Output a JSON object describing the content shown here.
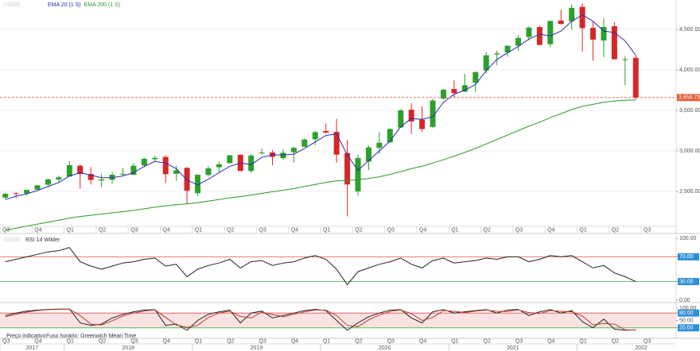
{
  "chart_data": [
    {
      "type": "candlestick",
      "watermark": "US500",
      "candles": {
        "open": [
          2423,
          2477,
          2474,
          2521,
          2583,
          2645,
          2683,
          2816,
          2715,
          2634,
          2643,
          2718,
          2705,
          2821,
          2897,
          2926,
          2717,
          2790,
          2477,
          2702,
          2798,
          2848,
          2952,
          2751,
          2971,
          2980,
          2910,
          2984,
          3051,
          3144,
          3245,
          3235,
          2974,
          2499,
          2869,
          3038,
          3105,
          3289,
          3508,
          3385,
          3296,
          3645,
          3764,
          3731,
          3842,
          3992,
          4191,
          4216,
          4300,
          4406,
          4529,
          4317,
          4610,
          4602,
          4778,
          4519,
          4363,
          4540,
          4130,
          4150
        ],
        "high": [
          2484,
          2490,
          2519,
          2582,
          2657,
          2695,
          2873,
          2835,
          2801,
          2718,
          2742,
          2791,
          2848,
          2917,
          2941,
          2940,
          2815,
          2800,
          2708,
          2813,
          2861,
          2949,
          2954,
          2964,
          3027,
          3013,
          3022,
          3050,
          3154,
          3248,
          3337,
          3394,
          3136,
          2954,
          3068,
          3233,
          3280,
          3514,
          3588,
          3549,
          3646,
          3760,
          3870,
          3950,
          3983,
          4218,
          4238,
          4302,
          4429,
          4537,
          4546,
          4608,
          4743,
          4808,
          4819,
          4595,
          4637,
          4593,
          4169,
          4177
        ],
        "low": [
          2407,
          2417,
          2446,
          2520,
          2557,
          2605,
          2683,
          2533,
          2585,
          2553,
          2594,
          2698,
          2699,
          2796,
          2864,
          2603,
          2631,
          2346,
          2444,
          2681,
          2722,
          2848,
          2751,
          2729,
          2952,
          2822,
          2891,
          2855,
          3051,
          3070,
          3214,
          2855,
          2192,
          2447,
          2766,
          2966,
          3101,
          3284,
          3210,
          3234,
          3280,
          3634,
          3662,
          3725,
          3724,
          3955,
          4056,
          4164,
          4233,
          4367,
          4305,
          4279,
          4560,
          4495,
          4222,
          4115,
          4157,
          4124,
          3811,
          3636
        ],
        "close": [
          2470,
          2471,
          2519,
          2575,
          2648,
          2674,
          2824,
          2714,
          2641,
          2648,
          2705,
          2718,
          2816,
          2902,
          2914,
          2712,
          2760,
          2507,
          2704,
          2784,
          2834,
          2946,
          2752,
          2942,
          2980,
          2926,
          2977,
          3038,
          3141,
          3231,
          3226,
          2954,
          2585,
          2912,
          3044,
          3100,
          3271,
          3500,
          3363,
          3270,
          3622,
          3756,
          3714,
          3811,
          3973,
          4181,
          4204,
          4298,
          4395,
          4523,
          4308,
          4605,
          4567,
          4766,
          4516,
          4374,
          4530,
          4132,
          4132,
          3658.73
        ],
        "up_color": "#2ca02c",
        "down_color": "#d62728"
      },
      "series": [
        {
          "name": "EMA 20 (1 S)",
          "color": "#2b2bb0",
          "values": [
            2400,
            2440,
            2470,
            2510,
            2560,
            2610,
            2690,
            2730,
            2700,
            2670,
            2670,
            2690,
            2730,
            2810,
            2870,
            2850,
            2780,
            2640,
            2580,
            2650,
            2730,
            2810,
            2850,
            2830,
            2920,
            2950,
            2950,
            2960,
            3030,
            3110,
            3190,
            3210,
            2950,
            2760,
            2880,
            3000,
            3120,
            3300,
            3400,
            3390,
            3420,
            3600,
            3700,
            3750,
            3820,
            3990,
            4130,
            4210,
            4290,
            4380,
            4440,
            4420,
            4480,
            4600,
            4680,
            4600,
            4480,
            4460,
            4360,
            4180
          ]
        },
        {
          "name": "EMA 200 (1 S)",
          "color": "#2a9a2a",
          "values": [
            2020,
            2045,
            2070,
            2095,
            2120,
            2145,
            2170,
            2190,
            2205,
            2220,
            2235,
            2250,
            2265,
            2285,
            2305,
            2320,
            2335,
            2345,
            2360,
            2380,
            2400,
            2420,
            2435,
            2455,
            2475,
            2495,
            2515,
            2535,
            2560,
            2585,
            2610,
            2630,
            2635,
            2645,
            2660,
            2680,
            2710,
            2745,
            2780,
            2810,
            2850,
            2890,
            2935,
            2980,
            3030,
            3085,
            3140,
            3195,
            3250,
            3305,
            3355,
            3410,
            3460,
            3510,
            3550,
            3575,
            3600,
            3615,
            3625,
            3630
          ]
        }
      ],
      "last_price": {
        "value": 3658.73,
        "label": "3,658.73",
        "color": "#e0603a"
      },
      "ylim": [
        1990,
        4863
      ],
      "yticks": [
        {
          "value": 2500,
          "label": "2,500.00"
        },
        {
          "value": 3000,
          "label": "3,000.00"
        },
        {
          "value": 3500,
          "label": "3,500.00"
        },
        {
          "value": 4000,
          "label": "4,000.00"
        },
        {
          "value": 4500,
          "label": "4,500.00"
        }
      ],
      "grid": true,
      "quarters": [
        "Q3",
        "Q4",
        "Q1",
        "Q2",
        "Q3",
        "Q4",
        "Q1",
        "Q2",
        "Q3",
        "Q4",
        "Q1",
        "Q2",
        "Q3",
        "Q4",
        "Q1",
        "Q2",
        "Q3",
        "Q4",
        "Q1",
        "Q2",
        "Q3"
      ],
      "years": [
        "2017",
        "2018",
        "2019",
        "2020",
        "2021",
        "2022"
      ],
      "footer": [
        "Preço indicativo",
        "Fuso horário: Greenwich Mean Time"
      ]
    },
    {
      "type": "line",
      "watermark": "US500",
      "title": "RSI 14 Wilder",
      "series": [
        {
          "color": "#222222",
          "values": [
            62,
            66,
            70,
            74,
            78,
            80,
            85,
            62,
            55,
            50,
            55,
            60,
            62,
            66,
            68,
            55,
            58,
            38,
            50,
            56,
            60,
            66,
            52,
            62,
            64,
            56,
            60,
            62,
            68,
            72,
            66,
            50,
            25,
            46,
            52,
            58,
            62,
            68,
            58,
            52,
            64,
            68,
            60,
            62,
            64,
            68,
            66,
            70,
            70,
            62,
            66,
            72,
            70,
            72,
            62,
            52,
            56,
            44,
            38,
            30
          ]
        }
      ],
      "levels": [
        {
          "value": 70,
          "color": "#e05050"
        },
        {
          "value": 30,
          "color": "#40b040"
        }
      ],
      "ylim": [
        0,
        100
      ],
      "yticks": [
        {
          "value": 0,
          "label": "0.00"
        },
        {
          "value": 30,
          "label": "30.00"
        },
        {
          "value": 70,
          "label": "70.00"
        },
        {
          "value": 100,
          "label": "100.00"
        }
      ]
    },
    {
      "type": "line",
      "series": [
        {
          "color": "#222222",
          "values": [
            70,
            80,
            88,
            92,
            95,
            96,
            96,
            40,
            30,
            35,
            60,
            75,
            85,
            92,
            94,
            30,
            35,
            10,
            50,
            75,
            85,
            92,
            40,
            80,
            88,
            60,
            70,
            80,
            90,
            95,
            90,
            50,
            10,
            40,
            65,
            80,
            92,
            94,
            60,
            40,
            85,
            94,
            80,
            85,
            90,
            94,
            80,
            92,
            95,
            70,
            85,
            94,
            80,
            90,
            45,
            20,
            55,
            15,
            10,
            12
          ]
        },
        {
          "color": "#c0392b",
          "values": [
            65,
            75,
            84,
            90,
            94,
            95,
            96,
            70,
            35,
            32,
            48,
            68,
            80,
            88,
            93,
            62,
            32,
            22,
            30,
            62,
            80,
            88,
            66,
            60,
            84,
            74,
            65,
            75,
            85,
            92,
            92,
            70,
            30,
            25,
            52,
            72,
            86,
            93,
            77,
            50,
            62,
            90,
            87,
            82,
            88,
            92,
            87,
            86,
            93,
            82,
            78,
            90,
            87,
            85,
            68,
            32,
            38,
            35,
            12,
            11
          ]
        }
      ],
      "levels": [
        {
          "value": 80,
          "color": "#e05050"
        },
        {
          "value": 20,
          "color": "#40b040"
        }
      ],
      "band_color": "#fbe3e3",
      "ylim": [
        0,
        100
      ],
      "yticks": [
        {
          "value": 20,
          "label": "20.00"
        },
        {
          "value": 50,
          "label": "50.00"
        },
        {
          "value": 80,
          "label": "80.00"
        },
        {
          "value": 100,
          "label": "100.00"
        }
      ]
    }
  ]
}
